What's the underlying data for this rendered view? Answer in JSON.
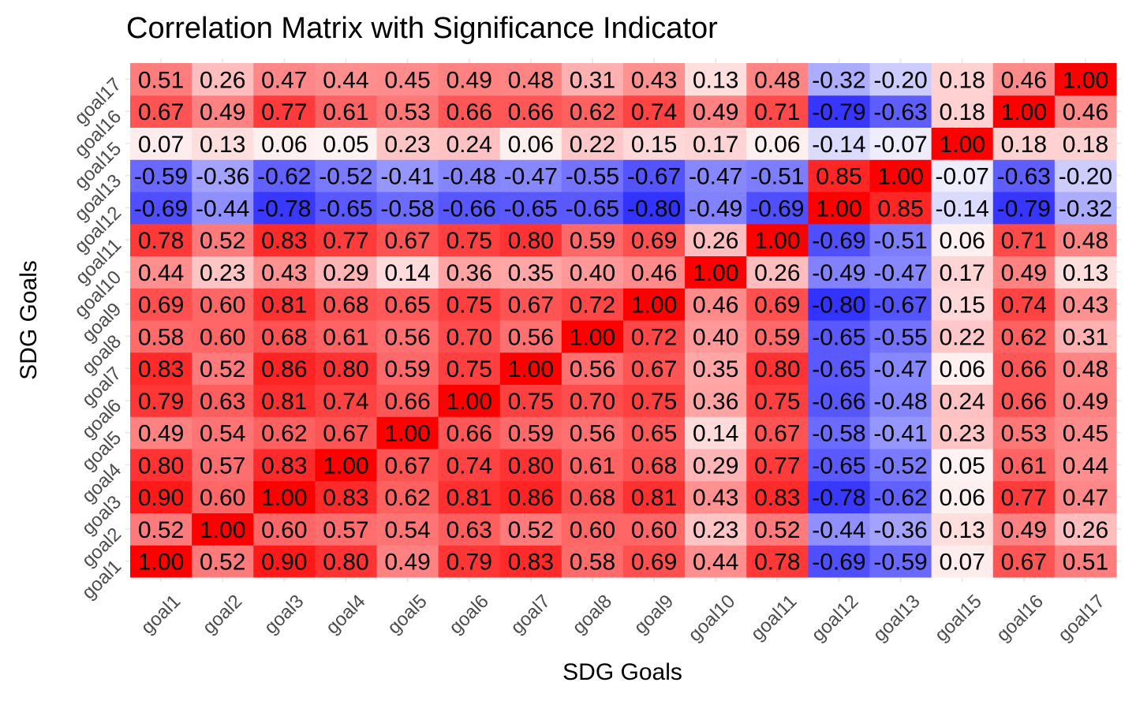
{
  "chart_data": {
    "type": "heatmap",
    "title": "Correlation Matrix with Significance Indicator",
    "xlabel": "SDG Goals",
    "ylabel": "SDG Goals",
    "categories": [
      "goal1",
      "goal2",
      "goal3",
      "goal4",
      "goal5",
      "goal6",
      "goal7",
      "goal8",
      "goal9",
      "goal10",
      "goal11",
      "goal12",
      "goal13",
      "goal15",
      "goal16",
      "goal17"
    ],
    "color_scale": {
      "low": "#0000ff",
      "mid": "#ffffff",
      "high": "#ff0000",
      "limits": [
        -1,
        1
      ]
    },
    "grid": true,
    "matrix": [
      [
        1.0,
        0.52,
        0.9,
        0.8,
        0.49,
        0.79,
        0.83,
        0.58,
        0.69,
        0.44,
        0.78,
        -0.69,
        -0.59,
        0.07,
        0.67,
        0.51
      ],
      [
        0.52,
        1.0,
        0.6,
        0.57,
        0.54,
        0.63,
        0.52,
        0.6,
        0.6,
        0.23,
        0.52,
        -0.44,
        -0.36,
        0.13,
        0.49,
        0.26
      ],
      [
        0.9,
        0.6,
        1.0,
        0.83,
        0.62,
        0.81,
        0.86,
        0.68,
        0.81,
        0.43,
        0.83,
        -0.78,
        -0.62,
        0.06,
        0.77,
        0.47
      ],
      [
        0.8,
        0.57,
        0.83,
        1.0,
        0.67,
        0.74,
        0.8,
        0.61,
        0.68,
        0.29,
        0.77,
        -0.65,
        -0.52,
        0.05,
        0.61,
        0.44
      ],
      [
        0.49,
        0.54,
        0.62,
        0.67,
        1.0,
        0.66,
        0.59,
        0.56,
        0.65,
        0.14,
        0.67,
        -0.58,
        -0.41,
        0.23,
        0.53,
        0.45
      ],
      [
        0.79,
        0.63,
        0.81,
        0.74,
        0.66,
        1.0,
        0.75,
        0.7,
        0.75,
        0.36,
        0.75,
        -0.66,
        -0.48,
        0.24,
        0.66,
        0.49
      ],
      [
        0.83,
        0.52,
        0.86,
        0.8,
        0.59,
        0.75,
        1.0,
        0.56,
        0.67,
        0.35,
        0.8,
        -0.65,
        -0.47,
        0.06,
        0.66,
        0.48
      ],
      [
        0.58,
        0.6,
        0.68,
        0.61,
        0.56,
        0.7,
        0.56,
        1.0,
        0.72,
        0.4,
        0.59,
        -0.65,
        -0.55,
        0.22,
        0.62,
        0.31
      ],
      [
        0.69,
        0.6,
        0.81,
        0.68,
        0.65,
        0.75,
        0.67,
        0.72,
        1.0,
        0.46,
        0.69,
        -0.8,
        -0.67,
        0.15,
        0.74,
        0.43
      ],
      [
        0.44,
        0.23,
        0.43,
        0.29,
        0.14,
        0.36,
        0.35,
        0.4,
        0.46,
        1.0,
        0.26,
        -0.49,
        -0.47,
        0.17,
        0.49,
        0.13
      ],
      [
        0.78,
        0.52,
        0.83,
        0.77,
        0.67,
        0.75,
        0.8,
        0.59,
        0.69,
        0.26,
        1.0,
        -0.69,
        -0.51,
        0.06,
        0.71,
        0.48
      ],
      [
        -0.69,
        -0.44,
        -0.78,
        -0.65,
        -0.58,
        -0.66,
        -0.65,
        -0.65,
        -0.8,
        -0.49,
        -0.69,
        1.0,
        0.85,
        -0.14,
        -0.79,
        -0.32
      ],
      [
        -0.59,
        -0.36,
        -0.62,
        -0.52,
        -0.41,
        -0.48,
        -0.47,
        -0.55,
        -0.67,
        -0.47,
        -0.51,
        0.85,
        1.0,
        -0.07,
        -0.63,
        -0.2
      ],
      [
        0.07,
        0.13,
        0.06,
        0.05,
        0.23,
        0.24,
        0.06,
        0.22,
        0.15,
        0.17,
        0.06,
        -0.14,
        -0.07,
        1.0,
        0.18,
        0.18
      ],
      [
        0.67,
        0.49,
        0.77,
        0.61,
        0.53,
        0.66,
        0.66,
        0.62,
        0.74,
        0.49,
        0.71,
        -0.79,
        -0.63,
        0.18,
        1.0,
        0.46
      ],
      [
        0.51,
        0.26,
        0.47,
        0.44,
        0.45,
        0.49,
        0.48,
        0.31,
        0.43,
        0.13,
        0.48,
        -0.32,
        -0.2,
        0.18,
        0.46,
        1.0
      ]
    ]
  }
}
